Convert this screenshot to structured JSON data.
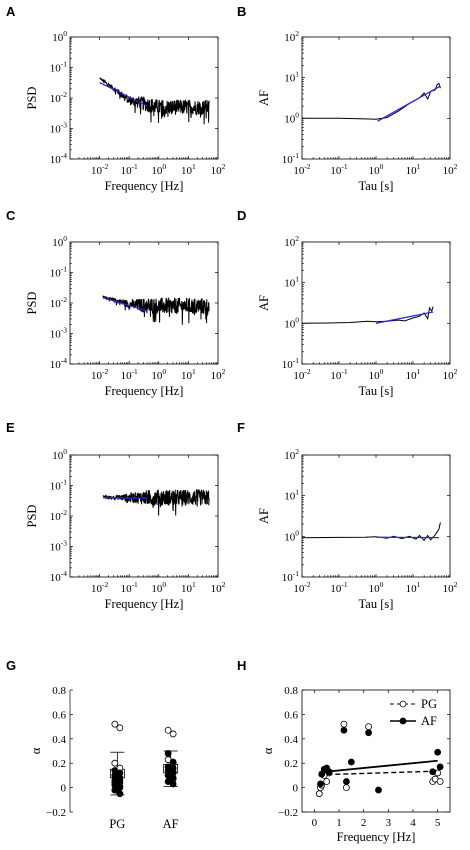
{
  "figure": {
    "background": "#ffffff",
    "data_color": "#000000",
    "fit_color": "#2b2bd6"
  },
  "chart_data": [
    {
      "id": "A",
      "panel_label": "A",
      "type": "line",
      "scale": "log-log",
      "xlabel": "Frequency [Hz]",
      "ylabel": "PSD",
      "xlim": [
        0.001,
        100
      ],
      "ylim": [
        0.0001,
        1
      ],
      "x_ticks": [
        {
          "b": "10",
          "e": "-2",
          "v": 0.01
        },
        {
          "b": "10",
          "e": "-1",
          "v": 0.1
        },
        {
          "b": "10",
          "e": "0",
          "v": 1
        },
        {
          "b": "10",
          "e": "1",
          "v": 10
        },
        {
          "b": "10",
          "e": "2",
          "v": 100
        }
      ],
      "y_ticks": [
        {
          "b": "10",
          "e": "-4",
          "v": 0.0001
        },
        {
          "b": "10",
          "e": "-3",
          "v": 0.001
        },
        {
          "b": "10",
          "e": "-2",
          "v": 0.01
        },
        {
          "b": "10",
          "e": "-1",
          "v": 0.1
        },
        {
          "b": "10",
          "e": "0",
          "v": 1
        }
      ],
      "series": [
        {
          "kind": "spectrum",
          "color": "#000000",
          "trend": [
            [
              0.01,
              0.045
            ],
            [
              0.1,
              0.0085
            ],
            [
              1,
              0.005
            ],
            [
              50,
              0.005
            ]
          ],
          "spread": 0.25
        },
        {
          "kind": "fit",
          "color": "#2b2bd6",
          "points": [
            [
              0.01,
              0.032
            ],
            [
              0.4,
              0.0055
            ]
          ]
        }
      ]
    },
    {
      "id": "B",
      "panel_label": "B",
      "type": "line",
      "scale": "log-log",
      "xlabel": "Tau [s]",
      "ylabel": "AF",
      "xlim": [
        0.01,
        100
      ],
      "ylim": [
        0.1,
        100
      ],
      "x_ticks": [
        {
          "b": "10",
          "e": "-2",
          "v": 0.01
        },
        {
          "b": "10",
          "e": "-1",
          "v": 0.1
        },
        {
          "b": "10",
          "e": "0",
          "v": 1
        },
        {
          "b": "10",
          "e": "1",
          "v": 10
        },
        {
          "b": "10",
          "e": "2",
          "v": 100
        }
      ],
      "y_ticks": [
        {
          "b": "10",
          "e": "-1",
          "v": 0.1
        },
        {
          "b": "10",
          "e": "0",
          "v": 1
        },
        {
          "b": "10",
          "e": "1",
          "v": 10
        },
        {
          "b": "10",
          "e": "2",
          "v": 100
        }
      ],
      "series": [
        {
          "kind": "curve",
          "color": "#000000",
          "points": [
            [
              0.01,
              1.0
            ],
            [
              0.1,
              1.0
            ],
            [
              0.5,
              0.97
            ],
            [
              1,
              0.95
            ],
            [
              2,
              1.05
            ],
            [
              4,
              1.5
            ],
            [
              8,
              2.3
            ],
            [
              15,
              3.2
            ],
            [
              20,
              4.2
            ],
            [
              25,
              3.0
            ],
            [
              30,
              4.6
            ],
            [
              40,
              5.0
            ],
            [
              45,
              6.8
            ],
            [
              50,
              7.2
            ],
            [
              55,
              5.5
            ]
          ]
        },
        {
          "kind": "fit",
          "color": "#2b2bd6",
          "points": [
            [
              1.1,
              0.85
            ],
            [
              55,
              6.2
            ]
          ]
        }
      ]
    },
    {
      "id": "C",
      "panel_label": "C",
      "type": "line",
      "scale": "log-log",
      "xlabel": "Frequency [Hz]",
      "ylabel": "PSD",
      "xlim": [
        0.001,
        100
      ],
      "ylim": [
        0.0001,
        1
      ],
      "x_ticks": [
        {
          "b": "10",
          "e": "-2",
          "v": 0.01
        },
        {
          "b": "10",
          "e": "-1",
          "v": 0.1
        },
        {
          "b": "10",
          "e": "0",
          "v": 1
        },
        {
          "b": "10",
          "e": "1",
          "v": 10
        },
        {
          "b": "10",
          "e": "2",
          "v": 100
        }
      ],
      "y_ticks": [
        {
          "b": "10",
          "e": "-4",
          "v": 0.0001
        },
        {
          "b": "10",
          "e": "-3",
          "v": 0.001
        },
        {
          "b": "10",
          "e": "-2",
          "v": 0.01
        },
        {
          "b": "10",
          "e": "-1",
          "v": 0.1
        },
        {
          "b": "10",
          "e": "0",
          "v": 1
        }
      ],
      "series": [
        {
          "kind": "spectrum",
          "color": "#000000",
          "trend": [
            [
              0.013,
              0.016
            ],
            [
              0.1,
              0.009
            ],
            [
              1,
              0.008
            ],
            [
              50,
              0.008
            ]
          ],
          "spread": 0.27
        },
        {
          "kind": "fit",
          "color": "#2b2bd6",
          "points": [
            [
              0.013,
              0.015
            ],
            [
              0.4,
              0.0055
            ]
          ]
        }
      ]
    },
    {
      "id": "D",
      "panel_label": "D",
      "type": "line",
      "scale": "log-log",
      "xlabel": "Tau [s]",
      "ylabel": "AF",
      "xlim": [
        0.01,
        100
      ],
      "ylim": [
        0.1,
        100
      ],
      "x_ticks": [
        {
          "b": "10",
          "e": "-2",
          "v": 0.01
        },
        {
          "b": "10",
          "e": "-1",
          "v": 0.1
        },
        {
          "b": "10",
          "e": "0",
          "v": 1
        },
        {
          "b": "10",
          "e": "1",
          "v": 10
        },
        {
          "b": "10",
          "e": "2",
          "v": 100
        }
      ],
      "y_ticks": [
        {
          "b": "10",
          "e": "-1",
          "v": 0.1
        },
        {
          "b": "10",
          "e": "0",
          "v": 1
        },
        {
          "b": "10",
          "e": "1",
          "v": 10
        },
        {
          "b": "10",
          "e": "2",
          "v": 100
        }
      ],
      "series": [
        {
          "kind": "curve",
          "color": "#000000",
          "points": [
            [
              0.01,
              1.0
            ],
            [
              0.05,
              1.02
            ],
            [
              0.2,
              1.05
            ],
            [
              0.6,
              1.12
            ],
            [
              1,
              1.1
            ],
            [
              2,
              1.12
            ],
            [
              4,
              1.2
            ],
            [
              6,
              1.15
            ],
            [
              10,
              1.35
            ],
            [
              15,
              1.5
            ],
            [
              20,
              1.8
            ],
            [
              25,
              1.3
            ],
            [
              28,
              2.4
            ],
            [
              32,
              2.0
            ],
            [
              35,
              2.6
            ]
          ]
        },
        {
          "kind": "fit",
          "color": "#2b2bd6",
          "points": [
            [
              1,
              1.0
            ],
            [
              35,
              1.9
            ]
          ]
        }
      ]
    },
    {
      "id": "E",
      "panel_label": "E",
      "type": "line",
      "scale": "log-log",
      "xlabel": "Frequency [Hz]",
      "ylabel": "PSD",
      "xlim": [
        0.001,
        100
      ],
      "ylim": [
        0.0001,
        1
      ],
      "x_ticks": [
        {
          "b": "10",
          "e": "-2",
          "v": 0.01
        },
        {
          "b": "10",
          "e": "-1",
          "v": 0.1
        },
        {
          "b": "10",
          "e": "0",
          "v": 1
        },
        {
          "b": "10",
          "e": "1",
          "v": 10
        },
        {
          "b": "10",
          "e": "2",
          "v": 100
        }
      ],
      "y_ticks": [
        {
          "b": "10",
          "e": "-4",
          "v": 0.0001
        },
        {
          "b": "10",
          "e": "-3",
          "v": 0.001
        },
        {
          "b": "10",
          "e": "-2",
          "v": 0.01
        },
        {
          "b": "10",
          "e": "-1",
          "v": 0.1
        },
        {
          "b": "10",
          "e": "0",
          "v": 1
        }
      ],
      "series": [
        {
          "kind": "spectrum",
          "color": "#000000",
          "trend": [
            [
              0.013,
              0.042
            ],
            [
              0.1,
              0.04
            ],
            [
              1,
              0.04
            ],
            [
              50,
              0.04
            ]
          ],
          "spread": 0.27
        },
        {
          "kind": "fit",
          "color": "#2b2bd6",
          "points": [
            [
              0.013,
              0.04
            ],
            [
              0.4,
              0.038
            ]
          ]
        }
      ]
    },
    {
      "id": "F",
      "panel_label": "F",
      "type": "line",
      "scale": "log-log",
      "xlabel": "Tau [s]",
      "ylabel": "AF",
      "xlim": [
        0.01,
        100
      ],
      "ylim": [
        0.1,
        100
      ],
      "x_ticks": [
        {
          "b": "10",
          "e": "-2",
          "v": 0.01
        },
        {
          "b": "10",
          "e": "-1",
          "v": 0.1
        },
        {
          "b": "10",
          "e": "0",
          "v": 1
        },
        {
          "b": "10",
          "e": "1",
          "v": 10
        },
        {
          "b": "10",
          "e": "2",
          "v": 100
        }
      ],
      "y_ticks": [
        {
          "b": "10",
          "e": "-1",
          "v": 0.1
        },
        {
          "b": "10",
          "e": "0",
          "v": 1
        },
        {
          "b": "10",
          "e": "1",
          "v": 10
        },
        {
          "b": "10",
          "e": "2",
          "v": 100
        }
      ],
      "series": [
        {
          "kind": "curve",
          "color": "#000000",
          "points": [
            [
              0.01,
              0.92
            ],
            [
              0.1,
              0.94
            ],
            [
              0.5,
              0.95
            ],
            [
              1,
              0.98
            ],
            [
              2,
              0.9
            ],
            [
              3,
              1.0
            ],
            [
              5,
              0.88
            ],
            [
              8,
              1.0
            ],
            [
              12,
              0.85
            ],
            [
              15,
              1.05
            ],
            [
              20,
              0.8
            ],
            [
              25,
              1.05
            ],
            [
              30,
              0.82
            ],
            [
              40,
              1.1
            ],
            [
              50,
              1.5
            ],
            [
              55,
              2.2
            ]
          ]
        },
        {
          "kind": "fit",
          "color": "#2b2bd6",
          "points": [
            [
              1,
              0.95
            ],
            [
              50,
              0.93
            ]
          ]
        }
      ]
    },
    {
      "id": "G",
      "panel_label": "G",
      "type": "scatter",
      "xlabel": "",
      "ylabel": "α",
      "ylim": [
        -0.2,
        0.8
      ],
      "categories": [
        "PG",
        "AF"
      ],
      "y_ticks": [
        {
          "t": "−0.2",
          "v": -0.2
        },
        {
          "t": "0",
          "v": 0
        },
        {
          "t": "0.2",
          "v": 0.2
        },
        {
          "t": "0.4",
          "v": 0.4
        },
        {
          "t": "0.6",
          "v": 0.6
        },
        {
          "t": "0.8",
          "v": 0.8
        }
      ],
      "summary": [
        {
          "category": "PG",
          "mean": 0.11,
          "sd_low": -0.06,
          "sd_high": 0.29,
          "box_low": 0.08,
          "box_high": 0.15
        },
        {
          "category": "AF",
          "mean": 0.15,
          "sd_low": 0.01,
          "sd_high": 0.3,
          "box_low": 0.12,
          "box_high": 0.19
        }
      ],
      "series": [
        {
          "name": "open",
          "fill": "none",
          "PG": [
            0.52,
            0.49,
            0.2,
            0.16,
            0.1,
            0.06,
            0.04,
            0.01,
            -0.02
          ],
          "AF": [
            0.47,
            0.44,
            0.23,
            0.2,
            0.17,
            0.13,
            0.1,
            0.07,
            0.05
          ]
        },
        {
          "name": "filled",
          "fill": "#000000",
          "PG": [
            0.14,
            0.12,
            0.1,
            0.08,
            0.06,
            0.04,
            0.02,
            0.0,
            -0.02,
            -0.05
          ],
          "AF": [
            0.28,
            0.21,
            0.17,
            0.16,
            0.14,
            0.12,
            0.1,
            0.08,
            0.05,
            0.03
          ]
        }
      ]
    },
    {
      "id": "H",
      "panel_label": "H",
      "type": "scatter",
      "xlabel": "Frequency [Hz]",
      "ylabel": "α",
      "xlim": [
        -0.5,
        5.5
      ],
      "ylim": [
        -0.2,
        0.8
      ],
      "x_ticks": [
        {
          "t": "0",
          "v": 0
        },
        {
          "t": "1",
          "v": 1
        },
        {
          "t": "2",
          "v": 2
        },
        {
          "t": "3",
          "v": 3
        },
        {
          "t": "4",
          "v": 4
        },
        {
          "t": "5",
          "v": 5
        }
      ],
      "y_ticks": [
        {
          "t": "−0.2",
          "v": -0.2
        },
        {
          "t": "0",
          "v": 0
        },
        {
          "t": "0.2",
          "v": 0.2
        },
        {
          "t": "0.4",
          "v": 0.4
        },
        {
          "t": "0.6",
          "v": 0.6
        },
        {
          "t": "0.8",
          "v": 0.8
        }
      ],
      "legend": {
        "placement": "top-right",
        "entries": [
          {
            "label": "PG",
            "marker": "open",
            "line": "dashed"
          },
          {
            "label": "AF",
            "marker": "filled",
            "line": "solid"
          }
        ]
      },
      "series": [
        {
          "name": "PG",
          "marker": "open",
          "points": [
            [
              0.2,
              -0.05
            ],
            [
              0.25,
              0.0
            ],
            [
              0.3,
              0.02
            ],
            [
              0.4,
              0.1
            ],
            [
              0.5,
              0.05
            ],
            [
              0.6,
              0.12
            ],
            [
              1.2,
              0.52
            ],
            [
              1.3,
              0.0
            ],
            [
              2.2,
              0.5
            ],
            [
              4.8,
              0.05
            ],
            [
              4.9,
              0.07
            ],
            [
              5.0,
              0.12
            ],
            [
              5.1,
              0.05
            ]
          ],
          "fit": {
            "style": "dashed",
            "points": [
              [
                0.2,
                0.105
              ],
              [
                5.0,
                0.135
              ]
            ]
          }
        },
        {
          "name": "AF",
          "marker": "filled",
          "points": [
            [
              0.25,
              0.03
            ],
            [
              0.3,
              0.11
            ],
            [
              0.4,
              0.15
            ],
            [
              0.5,
              0.16
            ],
            [
              0.6,
              0.13
            ],
            [
              1.2,
              0.47
            ],
            [
              1.3,
              0.05
            ],
            [
              1.5,
              0.21
            ],
            [
              2.2,
              0.45
            ],
            [
              2.6,
              -0.02
            ],
            [
              4.8,
              0.13
            ],
            [
              5.0,
              0.29
            ],
            [
              5.1,
              0.17
            ]
          ],
          "fit": {
            "style": "solid",
            "points": [
              [
                0.2,
                0.125
              ],
              [
                5.0,
                0.22
              ]
            ]
          }
        }
      ]
    }
  ]
}
